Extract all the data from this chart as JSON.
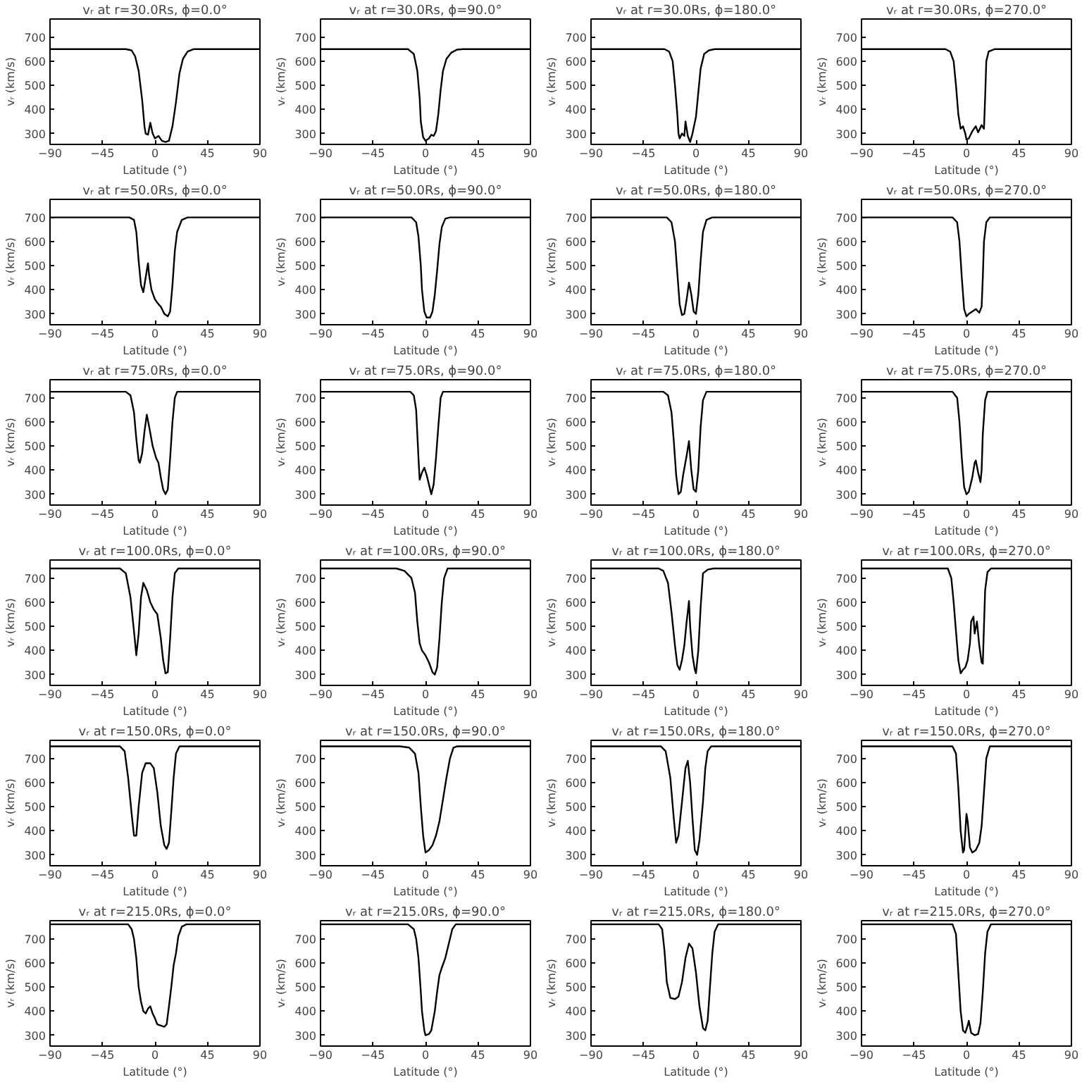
{
  "chart_data": [
    {
      "type": "line",
      "title": "vᵣ at r=30.0Rs, ϕ=0.0°",
      "xlabel": "Latitude (°)",
      "ylabel": "vᵣ (km/s)",
      "xlim": [
        -90,
        90
      ],
      "ylim": [
        255,
        775
      ],
      "xticks": [
        -90,
        -45,
        0,
        45,
        90
      ],
      "yticks": [
        300,
        400,
        500,
        600,
        700
      ],
      "series": [
        {
          "color": "#000000",
          "x": [
            -90,
            -25,
            -20,
            -17,
            -14,
            -11,
            -9,
            -8,
            -6,
            -4,
            -2,
            0,
            3,
            6,
            9,
            12,
            15,
            18,
            21,
            24,
            28,
            33,
            90
          ],
          "values": [
            650,
            650,
            645,
            620,
            560,
            440,
            330,
            300,
            295,
            345,
            300,
            280,
            290,
            270,
            265,
            270,
            330,
            430,
            550,
            610,
            640,
            650,
            650
          ]
        }
      ]
    },
    {
      "type": "line",
      "title": "vᵣ at r=30.0Rs, ϕ=90.0°",
      "xlabel": "Latitude (°)",
      "ylabel": "vᵣ (km/s)",
      "xlim": [
        -90,
        90
      ],
      "ylim": [
        255,
        775
      ],
      "xticks": [
        -90,
        -45,
        0,
        45,
        90
      ],
      "yticks": [
        300,
        400,
        500,
        600,
        700
      ],
      "series": [
        {
          "color": "#000000",
          "x": [
            -90,
            -15,
            -10,
            -7,
            -5,
            -4,
            -2,
            0,
            3,
            5,
            7,
            9,
            11,
            13,
            15,
            18,
            22,
            27,
            32,
            90
          ],
          "values": [
            650,
            650,
            630,
            560,
            450,
            350,
            285,
            270,
            280,
            295,
            290,
            310,
            380,
            480,
            560,
            610,
            635,
            648,
            650,
            650
          ]
        }
      ]
    },
    {
      "type": "line",
      "title": "vᵣ at r=30.0Rs, ϕ=180.0°",
      "xlabel": "Latitude (°)",
      "ylabel": "vᵣ (km/s)",
      "xlim": [
        -90,
        90
      ],
      "ylim": [
        255,
        775
      ],
      "xticks": [
        -90,
        -45,
        0,
        45,
        90
      ],
      "yticks": [
        300,
        400,
        500,
        600,
        700
      ],
      "series": [
        {
          "color": "#000000",
          "x": [
            -90,
            -27,
            -23,
            -20,
            -18,
            -16,
            -15,
            -14,
            -12,
            -10,
            -9,
            -7,
            -5,
            -3,
            0,
            2,
            4,
            7,
            11,
            16,
            90
          ],
          "values": [
            650,
            650,
            640,
            600,
            500,
            380,
            300,
            280,
            300,
            290,
            350,
            290,
            265,
            300,
            370,
            470,
            570,
            630,
            645,
            650,
            650
          ]
        }
      ]
    },
    {
      "type": "line",
      "title": "vᵣ at r=30.0Rs, ϕ=270.0°",
      "xlabel": "Latitude (°)",
      "ylabel": "vᵣ (km/s)",
      "xlim": [
        -90,
        90
      ],
      "ylim": [
        255,
        775
      ],
      "xticks": [
        -90,
        -45,
        0,
        45,
        90
      ],
      "yticks": [
        300,
        400,
        500,
        600,
        700
      ],
      "series": [
        {
          "color": "#000000",
          "x": [
            -90,
            -18,
            -14,
            -11,
            -9,
            -7,
            -5,
            -3,
            -1,
            0,
            2,
            5,
            8,
            10,
            13,
            15,
            16,
            17,
            19,
            24,
            90
          ],
          "values": [
            650,
            650,
            640,
            600,
            500,
            380,
            320,
            330,
            300,
            275,
            280,
            310,
            330,
            305,
            335,
            320,
            450,
            600,
            640,
            650,
            650
          ]
        }
      ]
    },
    {
      "type": "line",
      "title": "vᵣ at r=50.0Rs, ϕ=0.0°",
      "xlabel": "Latitude (°)",
      "ylabel": "vᵣ (km/s)",
      "xlim": [
        -90,
        90
      ],
      "ylim": [
        255,
        775
      ],
      "xticks": [
        -90,
        -45,
        0,
        45,
        90
      ],
      "yticks": [
        300,
        400,
        500,
        600,
        700
      ],
      "series": [
        {
          "color": "#000000",
          "x": [
            -90,
            -22,
            -18,
            -16,
            -14,
            -12,
            -10,
            -8,
            -6,
            -5,
            -3,
            0,
            3,
            5,
            8,
            11,
            13,
            15,
            17,
            19,
            23,
            28,
            90
          ],
          "values": [
            700,
            700,
            690,
            640,
            520,
            420,
            390,
            450,
            510,
            460,
            400,
            360,
            340,
            330,
            300,
            290,
            310,
            420,
            560,
            640,
            690,
            700,
            700
          ]
        }
      ]
    },
    {
      "type": "line",
      "title": "vᵣ at r=50.0Rs, ϕ=90.0°",
      "xlabel": "Latitude (°)",
      "ylabel": "vᵣ (km/s)",
      "xlim": [
        -90,
        90
      ],
      "ylim": [
        255,
        775
      ],
      "xticks": [
        -90,
        -45,
        0,
        45,
        90
      ],
      "yticks": [
        300,
        400,
        500,
        600,
        700
      ],
      "series": [
        {
          "color": "#000000",
          "x": [
            -90,
            -12,
            -8,
            -6,
            -4,
            -3,
            -1,
            1,
            4,
            6,
            8,
            10,
            12,
            14,
            17,
            21,
            90
          ],
          "values": [
            700,
            700,
            680,
            620,
            500,
            400,
            310,
            285,
            285,
            310,
            380,
            480,
            590,
            660,
            695,
            700,
            700
          ]
        }
      ]
    },
    {
      "type": "line",
      "title": "vᵣ at r=50.0Rs, ϕ=180.0°",
      "xlabel": "Latitude (°)",
      "ylabel": "vᵣ (km/s)",
      "xlim": [
        -90,
        90
      ],
      "ylim": [
        255,
        775
      ],
      "xticks": [
        -90,
        -45,
        0,
        45,
        90
      ],
      "yticks": [
        300,
        400,
        500,
        600,
        700
      ],
      "series": [
        {
          "color": "#000000",
          "x": [
            -90,
            -25,
            -21,
            -18,
            -16,
            -14,
            -12,
            -10,
            -8,
            -6,
            -4,
            -2,
            0,
            2,
            4,
            6,
            9,
            14,
            90
          ],
          "values": [
            700,
            700,
            680,
            600,
            470,
            340,
            295,
            300,
            360,
            430,
            380,
            310,
            300,
            380,
            520,
            640,
            690,
            700,
            700
          ]
        }
      ]
    },
    {
      "type": "line",
      "title": "vᵣ at r=50.0Rs, ϕ=270.0°",
      "xlabel": "Latitude (°)",
      "ylabel": "vᵣ (km/s)",
      "xlim": [
        -90,
        90
      ],
      "ylim": [
        255,
        775
      ],
      "xticks": [
        -90,
        -45,
        0,
        45,
        90
      ],
      "yticks": [
        300,
        400,
        500,
        600,
        700
      ],
      "series": [
        {
          "color": "#000000",
          "x": [
            -90,
            -12,
            -8,
            -6,
            -4,
            -2,
            0,
            2,
            5,
            8,
            11,
            13,
            14,
            15,
            17,
            20,
            90
          ],
          "values": [
            700,
            700,
            680,
            600,
            450,
            320,
            290,
            300,
            310,
            320,
            305,
            330,
            450,
            600,
            680,
            700,
            700
          ]
        }
      ]
    },
    {
      "type": "line",
      "title": "vᵣ at r=75.0Rs, ϕ=0.0°",
      "xlabel": "Latitude (°)",
      "ylabel": "vᵣ (km/s)",
      "xlim": [
        -90,
        90
      ],
      "ylim": [
        255,
        775
      ],
      "xticks": [
        -90,
        -45,
        0,
        45,
        90
      ],
      "yticks": [
        300,
        400,
        500,
        600,
        700
      ],
      "series": [
        {
          "color": "#000000",
          "x": [
            -90,
            -25,
            -21,
            -18,
            -16,
            -14,
            -13,
            -11,
            -9,
            -7,
            -5,
            -2,
            1,
            3,
            5,
            7,
            9,
            11,
            13,
            15,
            17,
            19,
            90
          ],
          "values": [
            725,
            725,
            710,
            640,
            530,
            440,
            430,
            470,
            560,
            630,
            580,
            500,
            450,
            430,
            370,
            320,
            300,
            320,
            450,
            600,
            700,
            725,
            725
          ]
        }
      ]
    },
    {
      "type": "line",
      "title": "vᵣ at r=75.0Rs, ϕ=90.0°",
      "xlabel": "Latitude (°)",
      "ylabel": "vᵣ (km/s)",
      "xlim": [
        -90,
        90
      ],
      "ylim": [
        255,
        775
      ],
      "xticks": [
        -90,
        -45,
        0,
        45,
        90
      ],
      "yticks": [
        300,
        400,
        500,
        600,
        700
      ],
      "series": [
        {
          "color": "#000000",
          "x": [
            -90,
            -13,
            -10,
            -8,
            -7,
            -6,
            -5,
            -3,
            -1,
            1,
            3,
            5,
            7,
            9,
            11,
            13,
            15,
            90
          ],
          "values": [
            725,
            725,
            710,
            650,
            550,
            450,
            360,
            390,
            410,
            380,
            340,
            300,
            340,
            450,
            580,
            700,
            725,
            725
          ]
        }
      ]
    },
    {
      "type": "line",
      "title": "vᵣ at r=75.0Rs, ϕ=180.0°",
      "xlabel": "Latitude (°)",
      "ylabel": "vᵣ (km/s)",
      "xlim": [
        -90,
        90
      ],
      "ylim": [
        255,
        775
      ],
      "xticks": [
        -90,
        -45,
        0,
        45,
        90
      ],
      "yticks": [
        300,
        400,
        500,
        600,
        700
      ],
      "series": [
        {
          "color": "#000000",
          "x": [
            -90,
            -28,
            -24,
            -21,
            -19,
            -17,
            -15,
            -13,
            -11,
            -8,
            -6,
            -4,
            -2,
            0,
            2,
            4,
            6,
            9,
            90
          ],
          "values": [
            725,
            725,
            710,
            640,
            520,
            380,
            300,
            310,
            380,
            460,
            520,
            400,
            320,
            310,
            400,
            580,
            690,
            725,
            725
          ]
        }
      ]
    },
    {
      "type": "line",
      "title": "vᵣ at r=75.0Rs, ϕ=270.0°",
      "xlabel": "Latitude (°)",
      "ylabel": "vᵣ (km/s)",
      "xlim": [
        -90,
        90
      ],
      "ylim": [
        255,
        775
      ],
      "xticks": [
        -90,
        -45,
        0,
        45,
        90
      ],
      "yticks": [
        300,
        400,
        500,
        600,
        700
      ],
      "series": [
        {
          "color": "#000000",
          "x": [
            -90,
            -12,
            -8,
            -6,
            -4,
            -2,
            0,
            2,
            5,
            7,
            8,
            10,
            12,
            13,
            14,
            16,
            18,
            90
          ],
          "values": [
            725,
            725,
            700,
            600,
            450,
            330,
            300,
            310,
            370,
            430,
            440,
            390,
            350,
            400,
            550,
            690,
            725,
            725
          ]
        }
      ]
    },
    {
      "type": "line",
      "title": "vᵣ at r=100.0Rs, ϕ=0.0°",
      "xlabel": "Latitude (°)",
      "ylabel": "vᵣ (km/s)",
      "xlim": [
        -90,
        90
      ],
      "ylim": [
        255,
        775
      ],
      "xticks": [
        -90,
        -45,
        0,
        45,
        90
      ],
      "yticks": [
        300,
        400,
        500,
        600,
        700
      ],
      "series": [
        {
          "color": "#000000",
          "x": [
            -90,
            -30,
            -25,
            -21,
            -18,
            -16,
            -14,
            -12,
            -10,
            -7,
            -4,
            -1,
            2,
            5,
            7,
            9,
            11,
            13,
            15,
            17,
            20,
            90
          ],
          "values": [
            740,
            740,
            720,
            620,
            480,
            380,
            470,
            620,
            680,
            650,
            600,
            570,
            550,
            450,
            360,
            305,
            310,
            450,
            620,
            720,
            740,
            740
          ]
        }
      ]
    },
    {
      "type": "line",
      "title": "vᵣ at r=100.0Rs, ϕ=90.0°",
      "xlabel": "Latitude (°)",
      "ylabel": "vᵣ (km/s)",
      "xlim": [
        -90,
        90
      ],
      "ylim": [
        255,
        775
      ],
      "xticks": [
        -90,
        -45,
        0,
        45,
        90
      ],
      "yticks": [
        300,
        400,
        500,
        600,
        700
      ],
      "series": [
        {
          "color": "#000000",
          "x": [
            -90,
            -25,
            -18,
            -12,
            -9,
            -7,
            -5,
            -3,
            0,
            3,
            6,
            8,
            10,
            12,
            14,
            16,
            19,
            90
          ],
          "values": [
            740,
            740,
            730,
            700,
            640,
            520,
            430,
            400,
            380,
            350,
            310,
            300,
            330,
            450,
            600,
            700,
            740,
            740
          ]
        }
      ]
    },
    {
      "type": "line",
      "title": "vᵣ at r=100.0Rs, ϕ=180.0°",
      "xlabel": "Latitude (°)",
      "ylabel": "vᵣ (km/s)",
      "xlim": [
        -90,
        90
      ],
      "ylim": [
        255,
        775
      ],
      "xticks": [
        -90,
        -45,
        0,
        45,
        90
      ],
      "yticks": [
        300,
        400,
        500,
        600,
        700
      ],
      "series": [
        {
          "color": "#000000",
          "x": [
            -90,
            -32,
            -28,
            -24,
            -21,
            -18,
            -16,
            -14,
            -12,
            -10,
            -8,
            -7,
            -6,
            -5,
            -3,
            -1,
            0,
            2,
            4,
            6,
            10,
            15,
            90
          ],
          "values": [
            740,
            740,
            730,
            680,
            560,
            420,
            340,
            320,
            360,
            420,
            520,
            560,
            605,
            500,
            380,
            320,
            305,
            400,
            580,
            720,
            735,
            740,
            740
          ]
        }
      ]
    },
    {
      "type": "line",
      "title": "vᵣ at r=100.0Rs, ϕ=270.0°",
      "xlabel": "Latitude (°)",
      "ylabel": "vᵣ (km/s)",
      "xlim": [
        -90,
        90
      ],
      "ylim": [
        255,
        775
      ],
      "xticks": [
        -90,
        -45,
        0,
        45,
        90
      ],
      "yticks": [
        300,
        400,
        500,
        600,
        700
      ],
      "series": [
        {
          "color": "#000000",
          "x": [
            -90,
            -16,
            -13,
            -11,
            -9,
            -7,
            -5,
            -3,
            -1,
            1,
            3,
            4,
            6,
            7,
            9,
            11,
            13,
            14,
            15,
            16,
            18,
            21,
            90
          ],
          "values": [
            740,
            740,
            700,
            600,
            480,
            360,
            305,
            320,
            330,
            360,
            430,
            520,
            540,
            470,
            520,
            420,
            350,
            345,
            500,
            650,
            725,
            740,
            740
          ]
        }
      ]
    },
    {
      "type": "line",
      "title": "vᵣ at r=150.0Rs, ϕ=0.0°",
      "xlabel": "Latitude (°)",
      "ylabel": "vᵣ (km/s)",
      "xlim": [
        -90,
        90
      ],
      "ylim": [
        255,
        775
      ],
      "xticks": [
        -90,
        -45,
        0,
        45,
        90
      ],
      "yticks": [
        300,
        400,
        500,
        600,
        700
      ],
      "series": [
        {
          "color": "#000000",
          "x": [
            -90,
            -30,
            -26,
            -23,
            -20,
            -18,
            -16,
            -14,
            -11,
            -8,
            -4,
            -1,
            2,
            5,
            8,
            10,
            12,
            14,
            16,
            18,
            21,
            90
          ],
          "values": [
            750,
            750,
            730,
            620,
            470,
            380,
            380,
            500,
            640,
            680,
            680,
            660,
            560,
            420,
            340,
            325,
            350,
            480,
            620,
            720,
            750,
            750
          ]
        }
      ]
    },
    {
      "type": "line",
      "title": "vᵣ at r=150.0Rs, ϕ=90.0°",
      "xlabel": "Latitude (°)",
      "ylabel": "vᵣ (km/s)",
      "xlim": [
        -90,
        90
      ],
      "ylim": [
        255,
        775
      ],
      "xticks": [
        -90,
        -45,
        0,
        45,
        90
      ],
      "yticks": [
        300,
        400,
        500,
        600,
        700
      ],
      "series": [
        {
          "color": "#000000",
          "x": [
            -90,
            -22,
            -14,
            -9,
            -6,
            -4,
            -2,
            0,
            3,
            6,
            9,
            12,
            15,
            18,
            21,
            24,
            27,
            90
          ],
          "values": [
            750,
            750,
            745,
            720,
            640,
            500,
            380,
            310,
            320,
            340,
            380,
            440,
            530,
            620,
            700,
            745,
            750,
            750
          ]
        }
      ]
    },
    {
      "type": "line",
      "title": "vᵣ at r=150.0Rs, ϕ=180.0°",
      "xlabel": "Latitude (°)",
      "ylabel": "vᵣ (km/s)",
      "xlim": [
        -90,
        90
      ],
      "ylim": [
        255,
        775
      ],
      "xticks": [
        -90,
        -45,
        0,
        45,
        90
      ],
      "yticks": [
        300,
        400,
        500,
        600,
        700
      ],
      "series": [
        {
          "color": "#000000",
          "x": [
            -90,
            -30,
            -26,
            -22,
            -19,
            -17,
            -15,
            -12,
            -9,
            -7,
            -5,
            -3,
            -1,
            1,
            3,
            6,
            8,
            10,
            13,
            90
          ],
          "values": [
            750,
            750,
            730,
            620,
            450,
            350,
            380,
            520,
            660,
            690,
            600,
            450,
            320,
            300,
            360,
            520,
            660,
            730,
            750,
            750
          ]
        }
      ]
    },
    {
      "type": "line",
      "title": "vᵣ at r=150.0Rs, ϕ=270.0°",
      "xlabel": "Latitude (°)",
      "ylabel": "vᵣ (km/s)",
      "xlim": [
        -90,
        90
      ],
      "ylim": [
        255,
        775
      ],
      "xticks": [
        -90,
        -45,
        0,
        45,
        90
      ],
      "yticks": [
        300,
        400,
        500,
        600,
        700
      ],
      "series": [
        {
          "color": "#000000",
          "x": [
            -90,
            -12,
            -9,
            -7,
            -5,
            -3,
            -2,
            0,
            1,
            3,
            5,
            8,
            11,
            13,
            15,
            17,
            20,
            90
          ],
          "values": [
            750,
            750,
            720,
            580,
            400,
            310,
            320,
            470,
            440,
            330,
            310,
            320,
            350,
            420,
            560,
            700,
            750,
            750
          ]
        }
      ]
    },
    {
      "type": "line",
      "title": "vᵣ at r=215.0Rs, ϕ=0.0°",
      "xlabel": "Latitude (°)",
      "ylabel": "vᵣ (km/s)",
      "xlim": [
        -90,
        90
      ],
      "ylim": [
        255,
        775
      ],
      "xticks": [
        -90,
        -45,
        0,
        45,
        90
      ],
      "yticks": [
        300,
        400,
        500,
        600,
        700
      ],
      "series": [
        {
          "color": "#000000",
          "x": [
            -90,
            -23,
            -20,
            -18,
            -16,
            -14,
            -12,
            -10,
            -8,
            -6,
            -4,
            -2,
            0,
            2,
            5,
            8,
            10,
            12,
            14,
            16,
            18,
            20,
            23,
            27,
            90
          ],
          "values": [
            760,
            760,
            740,
            700,
            620,
            500,
            440,
            400,
            390,
            410,
            420,
            390,
            370,
            345,
            340,
            335,
            345,
            420,
            500,
            590,
            640,
            710,
            750,
            760,
            760
          ]
        }
      ]
    },
    {
      "type": "line",
      "title": "vᵣ at r=215.0Rs, ϕ=90.0°",
      "xlabel": "Latitude (°)",
      "ylabel": "vᵣ (km/s)",
      "xlim": [
        -90,
        90
      ],
      "ylim": [
        255,
        775
      ],
      "xticks": [
        -90,
        -45,
        0,
        45,
        90
      ],
      "yticks": [
        300,
        400,
        500,
        600,
        700
      ],
      "series": [
        {
          "color": "#000000",
          "x": [
            -90,
            -15,
            -10,
            -8,
            -6,
            -4,
            -3,
            -1,
            0,
            3,
            5,
            8,
            10,
            12,
            14,
            17,
            20,
            23,
            26,
            90
          ],
          "values": [
            760,
            760,
            740,
            700,
            620,
            480,
            400,
            320,
            300,
            305,
            320,
            400,
            480,
            550,
            580,
            620,
            680,
            740,
            760,
            760
          ]
        }
      ]
    },
    {
      "type": "line",
      "title": "vᵣ at r=215.0Rs, ϕ=180.0°",
      "xlabel": "Latitude (°)",
      "ylabel": "vᵣ (km/s)",
      "xlim": [
        -90,
        90
      ],
      "ylim": [
        255,
        775
      ],
      "xticks": [
        -90,
        -45,
        0,
        45,
        90
      ],
      "yticks": [
        300,
        400,
        500,
        600,
        700
      ],
      "series": [
        {
          "color": "#000000",
          "x": [
            -90,
            -32,
            -29,
            -27,
            -25,
            -22,
            -18,
            -15,
            -12,
            -9,
            -6,
            -3,
            0,
            3,
            6,
            8,
            10,
            12,
            14,
            16,
            19,
            90
          ],
          "values": [
            760,
            760,
            740,
            650,
            520,
            455,
            450,
            460,
            520,
            620,
            680,
            660,
            560,
            420,
            330,
            320,
            360,
            500,
            640,
            730,
            760,
            760
          ]
        }
      ]
    },
    {
      "type": "line",
      "title": "vᵣ at r=215.0Rs, ϕ=270.0°",
      "xlabel": "Latitude (°)",
      "ylabel": "vᵣ (km/s)",
      "xlim": [
        -90,
        90
      ],
      "ylim": [
        255,
        775
      ],
      "xticks": [
        -90,
        -45,
        0,
        45,
        90
      ],
      "yticks": [
        300,
        400,
        500,
        600,
        700
      ],
      "series": [
        {
          "color": "#000000",
          "x": [
            -90,
            -12,
            -9,
            -7,
            -5,
            -3,
            -1,
            1,
            2,
            4,
            7,
            10,
            12,
            14,
            16,
            18,
            21,
            90
          ],
          "values": [
            760,
            760,
            720,
            560,
            400,
            320,
            310,
            340,
            360,
            310,
            300,
            305,
            350,
            480,
            640,
            730,
            760,
            760
          ]
        }
      ]
    }
  ]
}
